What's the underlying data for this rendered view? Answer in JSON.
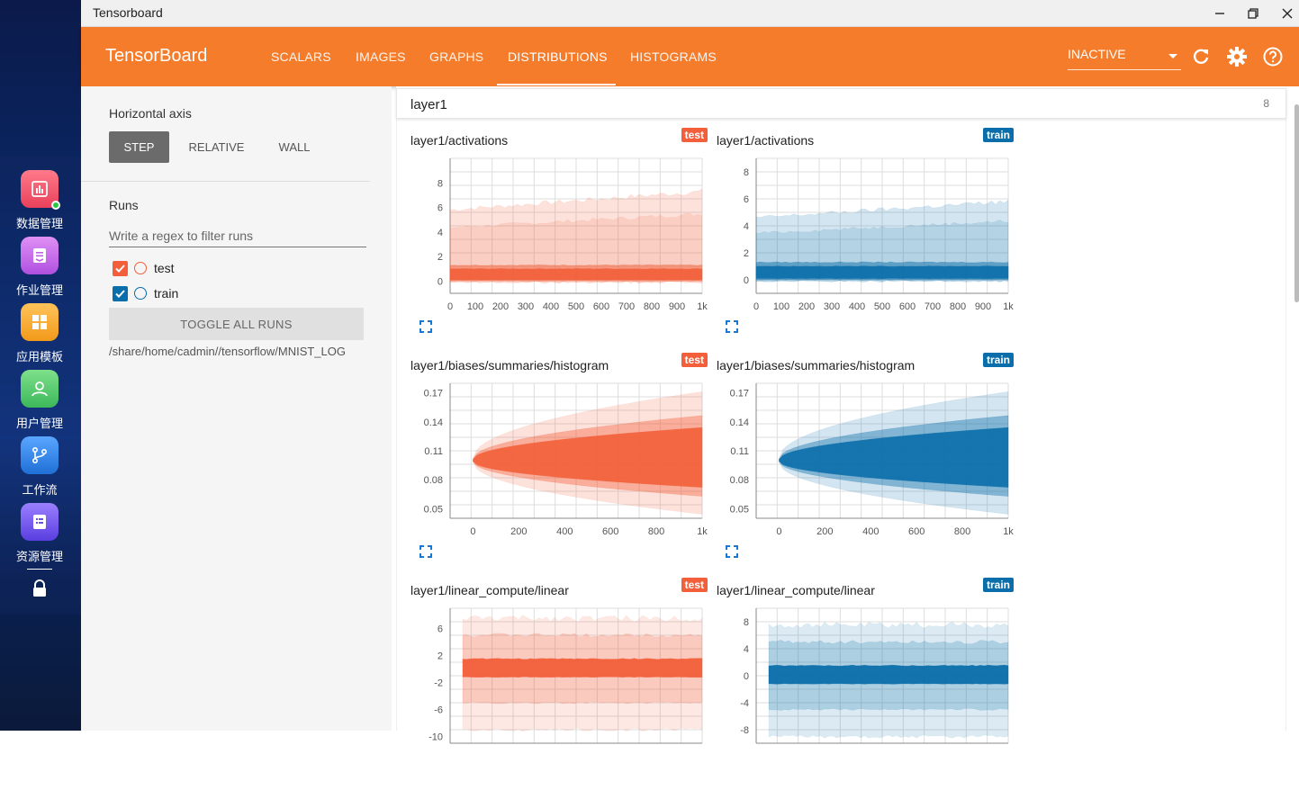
{
  "dock": {
    "items": [
      {
        "label": "数据管理",
        "icon": "chart-icon",
        "color": "#f0506e"
      },
      {
        "label": "作业管理",
        "icon": "document-icon",
        "color": "#c868e8"
      },
      {
        "label": "应用模板",
        "icon": "grid-icon",
        "color": "#f5a623"
      },
      {
        "label": "用户管理",
        "icon": "user-icon",
        "color": "#4cc764"
      },
      {
        "label": "工作流",
        "icon": "workflow-icon",
        "color": "#2f7fe0"
      },
      {
        "label": "资源管理",
        "icon": "list-icon",
        "color": "#7a5af0"
      }
    ]
  },
  "window": {
    "title": "Tensorboard"
  },
  "header": {
    "brand": "TensorBoard",
    "tabs": [
      "SCALARS",
      "IMAGES",
      "GRAPHS",
      "DISTRIBUTIONS",
      "HISTOGRAMS"
    ],
    "active_tab": "DISTRIBUTIONS",
    "inactive_select": "INACTIVE",
    "accent": "#f57c2b"
  },
  "sidebar": {
    "horizontal_axis_label": "Horizontal axis",
    "axis_options": [
      "STEP",
      "RELATIVE",
      "WALL"
    ],
    "axis_selected": "STEP",
    "runs_label": "Runs",
    "regex_placeholder": "Write a regex to filter runs",
    "runs": [
      {
        "name": "test",
        "checked": true,
        "color": "#f25f3a"
      },
      {
        "name": "train",
        "checked": true,
        "color": "#0a6eaa"
      }
    ],
    "toggle_all": "TOGGLE ALL RUNS",
    "logdir": "/share/home/cadmin//tensorflow/MNIST_LOG"
  },
  "main": {
    "group_title": "layer1",
    "group_count": "8",
    "cards": [
      {
        "title": "layer1/activations",
        "run": "test"
      },
      {
        "title": "layer1/activations",
        "run": "train"
      },
      {
        "title": "layer1/biases/summaries/histogram",
        "run": "test"
      },
      {
        "title": "layer1/biases/summaries/histogram",
        "run": "train"
      },
      {
        "title": "layer1/linear_compute/linear",
        "run": "test"
      },
      {
        "title": "layer1/linear_compute/linear",
        "run": "train"
      }
    ]
  },
  "chart_data": [
    {
      "type": "area",
      "title": "layer1/activations",
      "series": [
        {
          "name": "test"
        }
      ],
      "color": "#f25f3a",
      "x_ticks": [
        "0",
        "100",
        "200",
        "300",
        "400",
        "500",
        "600",
        "700",
        "800",
        "900",
        "1k"
      ],
      "y_ticks": [
        "0",
        "2",
        "4",
        "6",
        "8"
      ],
      "xlim": [
        0,
        1000
      ],
      "ylim": [
        -1,
        10
      ]
    },
    {
      "type": "area",
      "title": "layer1/activations",
      "series": [
        {
          "name": "train"
        }
      ],
      "color": "#0a6eaa",
      "x_ticks": [
        "0",
        "100",
        "200",
        "300",
        "400",
        "500",
        "600",
        "700",
        "800",
        "900",
        "1k"
      ],
      "y_ticks": [
        "0",
        "2",
        "4",
        "6",
        "8"
      ],
      "xlim": [
        0,
        1000
      ],
      "ylim": [
        -1,
        9
      ]
    },
    {
      "type": "area",
      "title": "layer1/biases/summaries/histogram",
      "series": [
        {
          "name": "test"
        }
      ],
      "color": "#f25f3a",
      "x_ticks": [
        "0",
        "200",
        "400",
        "600",
        "800",
        "1k"
      ],
      "y_ticks": [
        "0.05",
        "0.08",
        "0.11",
        "0.14",
        "0.17"
      ],
      "xlim": [
        -100,
        1000
      ],
      "ylim": [
        0.04,
        0.18
      ]
    },
    {
      "type": "area",
      "title": "layer1/biases/summaries/histogram",
      "series": [
        {
          "name": "train"
        }
      ],
      "color": "#0a6eaa",
      "x_ticks": [
        "0",
        "200",
        "400",
        "600",
        "800",
        "1k"
      ],
      "y_ticks": [
        "0.05",
        "0.08",
        "0.11",
        "0.14",
        "0.17"
      ],
      "xlim": [
        -100,
        1000
      ],
      "ylim": [
        0.04,
        0.18
      ]
    },
    {
      "type": "area",
      "title": "layer1/linear_compute/linear",
      "series": [
        {
          "name": "test"
        }
      ],
      "color": "#f25f3a",
      "x_ticks": [],
      "y_ticks": [
        "-10",
        "-6",
        "-2",
        "2",
        "6"
      ],
      "xlim": [
        0,
        1000
      ],
      "ylim": [
        -11,
        9
      ]
    },
    {
      "type": "area",
      "title": "layer1/linear_compute/linear",
      "series": [
        {
          "name": "train"
        }
      ],
      "color": "#0a6eaa",
      "x_ticks": [],
      "y_ticks": [
        "-8",
        "-4",
        "0",
        "4",
        "8"
      ],
      "xlim": [
        0,
        1000
      ],
      "ylim": [
        -10,
        10
      ]
    }
  ]
}
